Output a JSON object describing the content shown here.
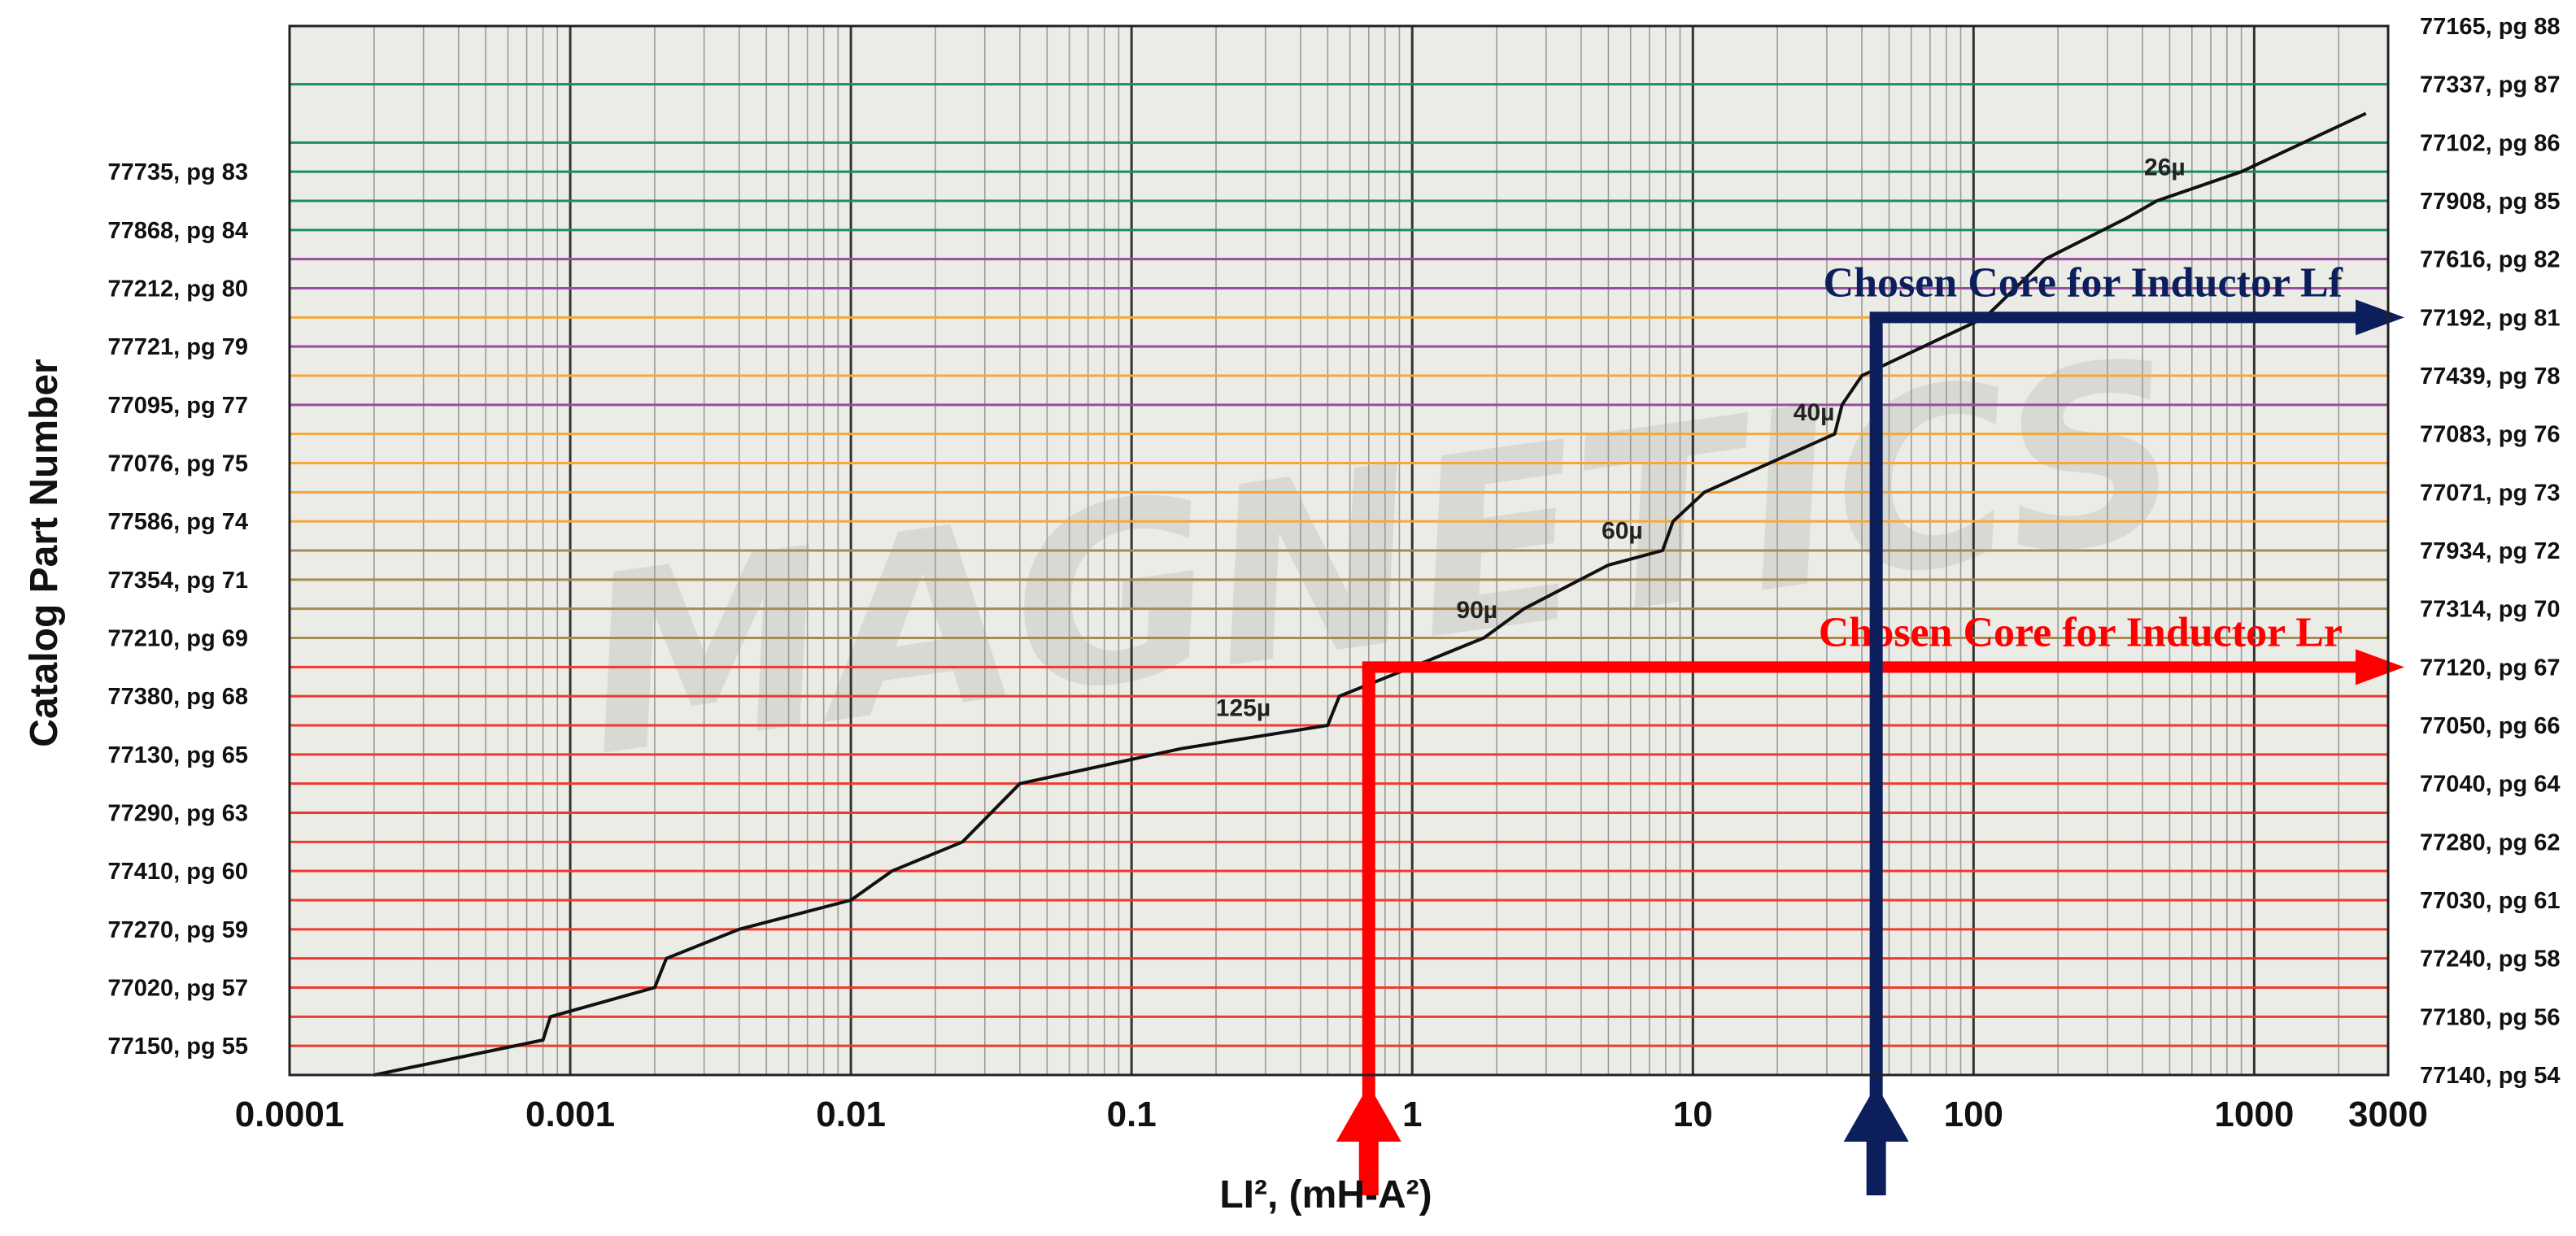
{
  "chart_data": {
    "type": "line",
    "title": "",
    "xlabel": "LI², (mH-A²)",
    "ylabel": "Catalog Part Number",
    "x_scale": "log",
    "xlim": [
      0.0001,
      3000
    ],
    "x_ticks": [
      "0.0001",
      "0.001",
      "0.01",
      "0.1",
      "1",
      "10",
      "100",
      "1000",
      "3000"
    ],
    "grid": true,
    "watermark": "MAGNETICS",
    "colors": {
      "background": "#ecece7",
      "red": "#ee3a30",
      "orange": "#f6a73a",
      "tan": "#a98a56",
      "purple": "#9a4ba2",
      "green": "#1c8c68",
      "curve": "#111111",
      "arrow_red": "#ff0000",
      "arrow_navy": "#0c1f5c"
    },
    "left_axis_labels": [
      "77150, pg 55",
      "77020, pg 57",
      "77270, pg 59",
      "77410, pg 60",
      "77290, pg 63",
      "77130, pg 65",
      "77380, pg 68",
      "77210, pg 69",
      "77354, pg 71",
      "77586, pg 74",
      "77076, pg 75",
      "77095, pg 77",
      "77721, pg 79",
      "77212, pg 80",
      "77868, pg 84",
      "77735, pg 83"
    ],
    "right_axis_labels": [
      "77140, pg 54",
      "77180, pg 56",
      "77240, pg 58",
      "77030, pg 61",
      "77280, pg 62",
      "77040, pg 64",
      "77050, pg 66",
      "77120, pg 67",
      "77314, pg 70",
      "77934, pg 72",
      "77071, pg 73",
      "77083, pg 76",
      "77439, pg 78",
      "77192, pg 81",
      "77616, pg 82",
      "77908, pg 85",
      "77102, pg 86",
      "77337, pg 87",
      "77165, pg 88"
    ],
    "permeability_labels": [
      {
        "text": "125µ",
        "x": 0.25
      },
      {
        "text": "90µ",
        "x": 1.7
      },
      {
        "text": "60µ",
        "x": 5.6
      },
      {
        "text": "40µ",
        "x": 27
      },
      {
        "text": "26µ",
        "x": 480
      }
    ],
    "curve": {
      "name": "",
      "x": [
        0.0002,
        0.0008,
        0.00085,
        0.002,
        0.0022,
        0.004,
        0.01,
        0.014,
        0.025,
        0.04,
        0.15,
        0.5,
        0.55,
        1.0,
        1.8,
        2.5,
        5.0,
        7.8,
        8.5,
        11,
        32,
        34,
        40,
        110,
        180,
        350,
        450,
        900,
        1500,
        2500
      ],
      "y": [
        0.0,
        0.6,
        1.0,
        1.5,
        2.0,
        2.5,
        3.0,
        3.5,
        4.0,
        5.0,
        5.6,
        6.0,
        6.5,
        7.0,
        7.5,
        8.0,
        8.75,
        9.0,
        9.5,
        10.0,
        11.0,
        11.5,
        12.0,
        13.0,
        14.0,
        14.7,
        15.0,
        15.5,
        16.0,
        16.5
      ]
    },
    "selections": [
      {
        "label": "Chosen Core for Inductor Lr",
        "x": 0.7,
        "part": "77120, pg 67",
        "color": "#ff0000"
      },
      {
        "label": "Chosen Core for Inductor Lf",
        "x": 45,
        "part": "77192, pg 81",
        "color": "#0c1f5c"
      }
    ]
  }
}
